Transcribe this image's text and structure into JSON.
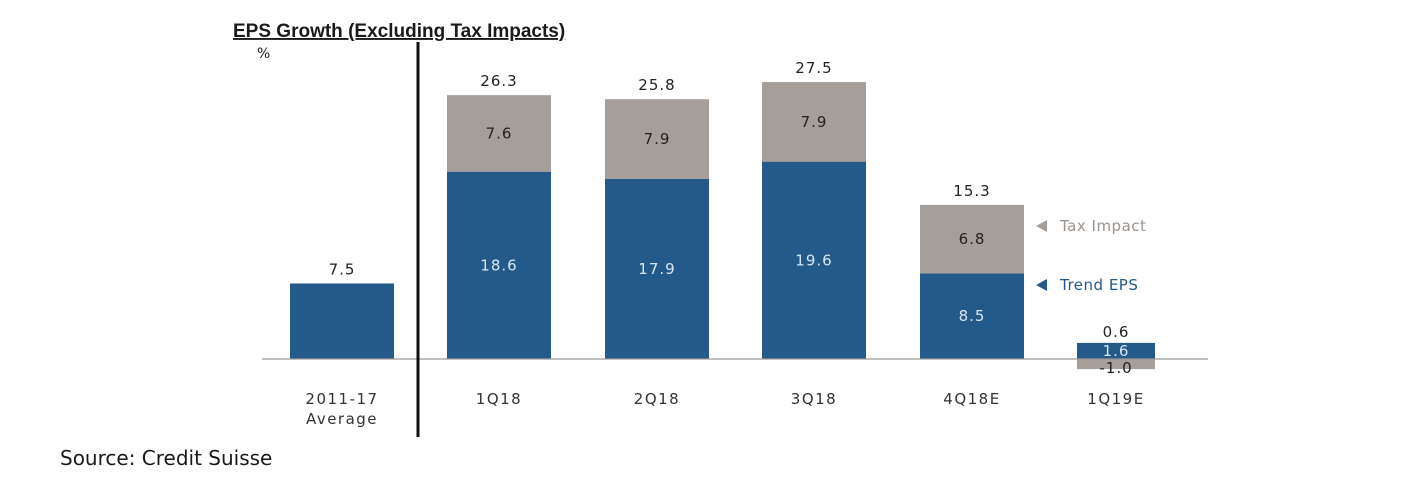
{
  "chart_data": {
    "type": "bar",
    "stacked": true,
    "title": "EPS Growth (Excluding Tax Impacts)",
    "ylabel": "%",
    "xlabel": "",
    "ylim": [
      -1.5,
      28
    ],
    "grid": false,
    "categories": [
      {
        "lines": [
          "2011-17",
          "Average"
        ]
      },
      {
        "lines": [
          "1Q18"
        ]
      },
      {
        "lines": [
          "2Q18"
        ]
      },
      {
        "lines": [
          "3Q18"
        ]
      },
      {
        "lines": [
          "4Q18E"
        ]
      },
      {
        "lines": [
          "1Q19E"
        ]
      }
    ],
    "series": [
      {
        "name": "Trend EPS",
        "color": "#245a8a",
        "values": [
          7.5,
          18.6,
          17.9,
          19.6,
          8.5,
          1.6
        ]
      },
      {
        "name": "Tax Impact",
        "color": "#a69e98",
        "values": [
          null,
          7.6,
          7.9,
          7.9,
          6.8,
          -1.0
        ]
      }
    ],
    "segment_labels": {
      "Trend EPS": [
        "",
        "18.6",
        "17.9",
        "19.6",
        "8.5",
        "1.6"
      ],
      "Tax Impact": [
        "",
        "7.6",
        "7.9",
        "7.9",
        "6.8",
        "-1.0"
      ]
    },
    "totals": [
      "7.5",
      "26.3",
      "25.8",
      "27.5",
      "15.3",
      "0.6"
    ],
    "legend": {
      "placement": "right",
      "entries": [
        {
          "label": "Tax Impact",
          "color": "#a69e98",
          "marker": "left-triangle"
        },
        {
          "label": "Trend EPS",
          "color": "#245a8a",
          "marker": "left-triangle"
        }
      ]
    },
    "separator_after_category": 0
  },
  "source": "Source: Credit Suisse"
}
